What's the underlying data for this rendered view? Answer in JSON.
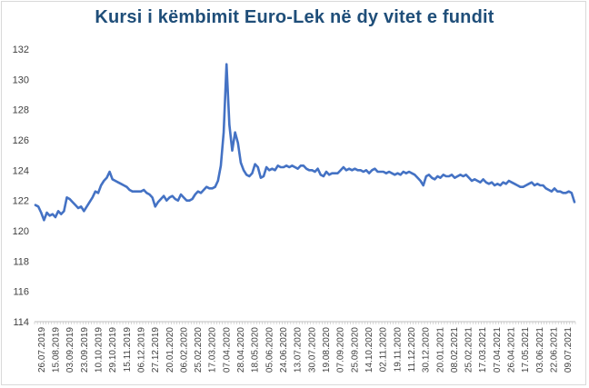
{
  "chart_data": {
    "type": "line",
    "title": "Kursi i këmbimit Euro-Lek në dy vitet e fundit",
    "xlabel": "",
    "ylabel": "",
    "ylim": [
      114,
      132
    ],
    "yticks": [
      114,
      116,
      118,
      120,
      122,
      124,
      126,
      128,
      130,
      132
    ],
    "grid": false,
    "legend": "none",
    "line_color": "#4472c4",
    "x_tick_labels": [
      "26.07.2019",
      "15.08.2019",
      "03.09.2019",
      "23.09.2019",
      "10.10.2019",
      "29.10.2019",
      "15.11.2019",
      "06.12.2019",
      "27.12.2019",
      "20.01.2020",
      "06.02.2020",
      "25.02.2020",
      "17.03.2020",
      "07.04.2020",
      "28.04.2020",
      "18.05.2020",
      "05.06.2020",
      "24.06.2020",
      "13.07.2020",
      "30.07.2020",
      "19.08.2020",
      "07.09.2020",
      "25.09.2020",
      "14.10.2020",
      "02.11.2020",
      "19.11.2020",
      "11.12.2020",
      "30.12.2020",
      "20.01.2021",
      "08.02.2021",
      "25.02.2021",
      "17.03.2021",
      "07.04.2021",
      "26.04.2021",
      "17.05.2021",
      "03.06.2021",
      "22.06.2021",
      "09.07.2021"
    ],
    "series": [
      {
        "values": [
          121.7,
          121.6,
          121.2,
          120.7,
          121.2,
          121.0,
          121.1,
          120.9,
          121.3,
          121.1,
          121.3,
          122.2,
          122.1,
          121.9,
          121.7,
          121.5,
          121.6,
          121.3,
          121.6,
          121.9,
          122.2,
          122.6,
          122.5,
          123.0,
          123.3,
          123.5,
          123.9,
          123.4,
          123.3,
          123.2,
          123.1,
          123.0,
          122.9,
          122.7,
          122.6,
          122.6,
          122.6,
          122.6,
          122.7,
          122.5,
          122.4,
          122.2,
          121.6,
          121.9,
          122.1,
          122.3,
          122.0,
          122.2,
          122.3,
          122.1,
          122.0,
          122.4,
          122.2,
          122.0,
          122.0,
          122.1,
          122.4,
          122.6,
          122.5,
          122.7,
          122.9,
          122.8,
          122.8,
          122.9,
          123.3,
          124.3,
          126.5,
          131.0,
          127.0,
          125.3,
          126.5,
          125.8,
          124.5,
          124.0,
          123.7,
          123.6,
          123.8,
          124.4,
          124.2,
          123.5,
          123.6,
          124.2,
          124.0,
          124.1,
          124.0,
          124.3,
          124.2,
          124.2,
          124.3,
          124.2,
          124.3,
          124.2,
          124.1,
          124.3,
          124.3,
          124.1,
          124.0,
          124.0,
          123.9,
          124.1,
          123.7,
          123.6,
          123.9,
          123.7,
          123.8,
          123.8,
          123.8,
          124.0,
          124.2,
          124.0,
          124.1,
          124.0,
          124.1,
          124.0,
          124.0,
          123.9,
          124.0,
          123.8,
          124.0,
          124.1,
          123.9,
          123.9,
          123.9,
          123.8,
          123.9,
          123.8,
          123.7,
          123.8,
          123.7,
          123.9,
          123.8,
          123.9,
          123.8,
          123.7,
          123.5,
          123.3,
          123.0,
          123.6,
          123.7,
          123.5,
          123.4,
          123.6,
          123.5,
          123.7,
          123.6,
          123.6,
          123.7,
          123.5,
          123.6,
          123.7,
          123.6,
          123.7,
          123.5,
          123.3,
          123.4,
          123.3,
          123.2,
          123.4,
          123.2,
          123.1,
          123.2,
          123.0,
          123.1,
          123.0,
          123.2,
          123.1,
          123.3,
          123.2,
          123.1,
          123.0,
          122.9,
          122.9,
          123.0,
          123.1,
          123.2,
          123.0,
          123.1,
          123.0,
          123.0,
          122.8,
          122.7,
          122.6,
          122.8,
          122.6,
          122.6,
          122.5,
          122.5,
          122.6,
          122.5,
          121.9
        ]
      }
    ]
  }
}
